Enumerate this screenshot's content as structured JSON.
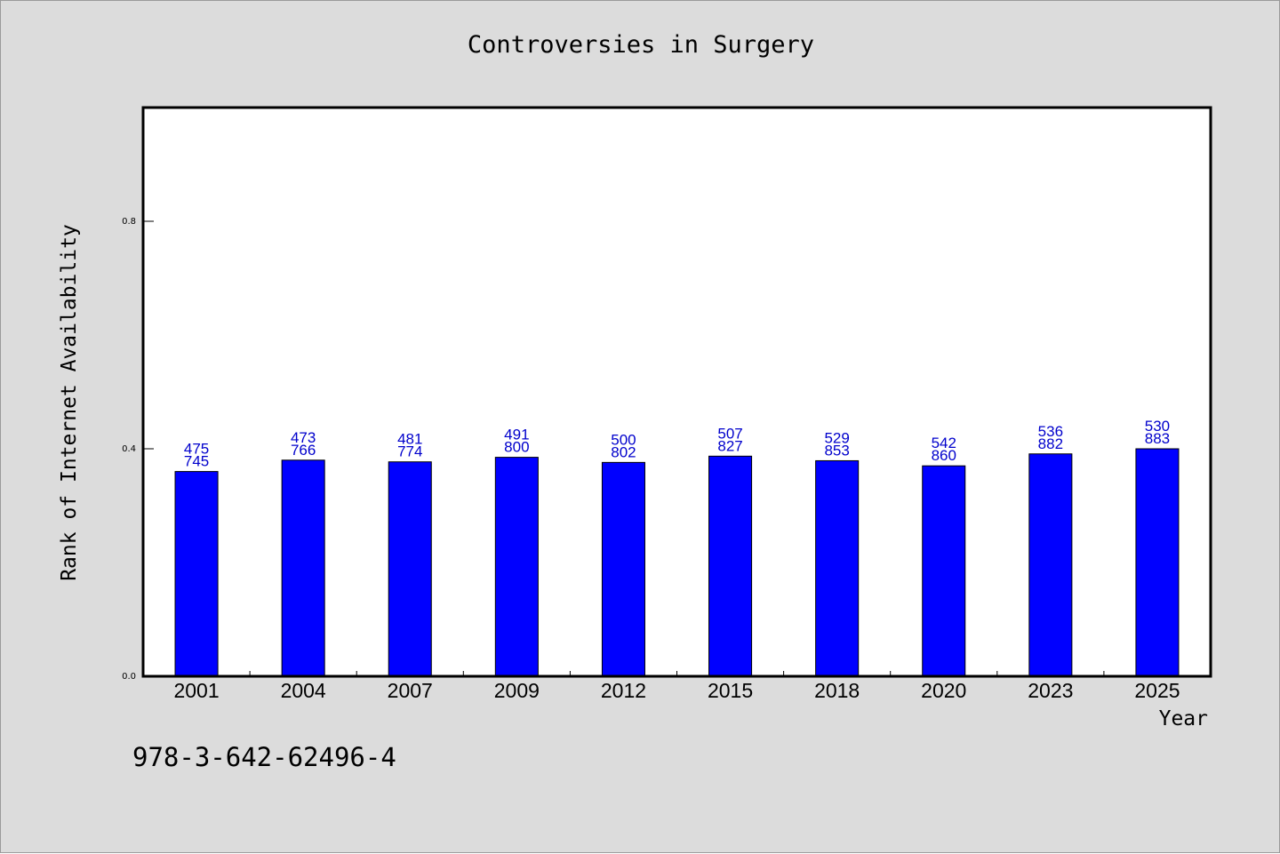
{
  "chart_data": {
    "type": "bar",
    "title": "Controversies in Surgery",
    "xlabel": "Year",
    "ylabel": "Rank of Internet Availability",
    "categories": [
      "2001",
      "2004",
      "2007",
      "2009",
      "2012",
      "2015",
      "2018",
      "2020",
      "2023",
      "2025"
    ],
    "values": [
      0.36,
      0.38,
      0.377,
      0.385,
      0.376,
      0.387,
      0.379,
      0.37,
      0.391,
      0.4
    ],
    "label_top": [
      "475",
      "473",
      "481",
      "491",
      "500",
      "507",
      "529",
      "542",
      "536",
      "530"
    ],
    "label_bottom": [
      "745",
      "766",
      "774",
      "800",
      "802",
      "827",
      "853",
      "860",
      "882",
      "883"
    ],
    "ylim": [
      0,
      1.0
    ],
    "yticks": [
      "0.0",
      "0.4",
      "0.8"
    ],
    "grid": false,
    "bar_color": "#0000ff",
    "label_color": "#0000cc",
    "background_color": "#dcdcdc",
    "plot_background_color": "#ffffff"
  },
  "footer_text": "978-3-642-62496-4"
}
